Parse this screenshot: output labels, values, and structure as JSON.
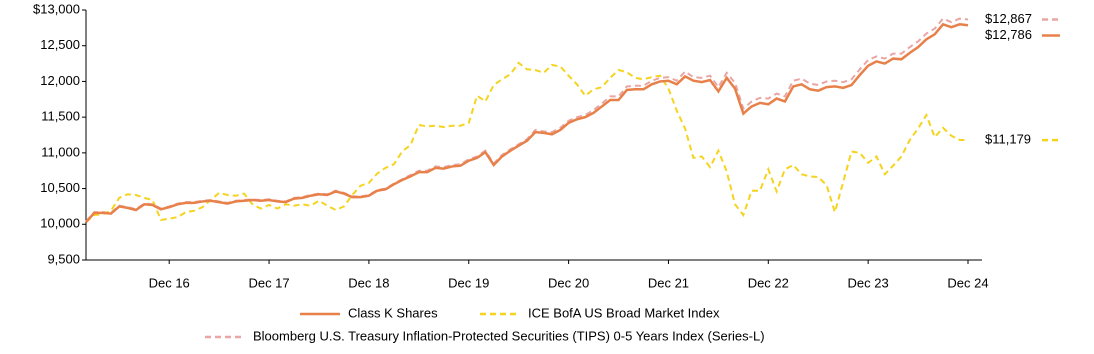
{
  "chart_data": {
    "type": "line",
    "categories": [
      null,
      null,
      null,
      null,
      null,
      null,
      null,
      null,
      null,
      null,
      "Dec 16",
      null,
      null,
      null,
      null,
      null,
      null,
      null,
      null,
      null,
      null,
      null,
      "Dec 17",
      null,
      null,
      null,
      null,
      null,
      null,
      null,
      null,
      null,
      null,
      null,
      "Dec 18",
      null,
      null,
      null,
      null,
      null,
      null,
      null,
      null,
      null,
      null,
      null,
      "Dec 19",
      null,
      null,
      null,
      null,
      null,
      null,
      null,
      null,
      null,
      null,
      null,
      "Dec 20",
      null,
      null,
      null,
      null,
      null,
      null,
      null,
      null,
      null,
      null,
      null,
      "Dec 21",
      null,
      null,
      null,
      null,
      null,
      null,
      null,
      null,
      null,
      null,
      null,
      "Dec 22",
      null,
      null,
      null,
      null,
      null,
      null,
      null,
      null,
      null,
      null,
      null,
      "Dec 23",
      null,
      null,
      null,
      null,
      null,
      null,
      null,
      null,
      null,
      null,
      null,
      "Dec 24"
    ],
    "ylim": [
      9500,
      13000
    ],
    "yticks": [
      {
        "value": 9500,
        "label": "9,500"
      },
      {
        "value": 10000,
        "label": "10,000"
      },
      {
        "value": 10500,
        "label": "10,500"
      },
      {
        "value": 11000,
        "label": "11,000"
      },
      {
        "value": 11500,
        "label": "11,500"
      },
      {
        "value": 12000,
        "label": "12,000"
      },
      {
        "value": 12500,
        "label": "12,500"
      },
      {
        "value": 13000,
        "label": "$13,000"
      }
    ],
    "grid": false,
    "series": [
      {
        "name": "Class K Shares",
        "color": "#e8804a",
        "dash": false,
        "end_label": "$12,786",
        "values": [
          10030,
          10160,
          10160,
          10150,
          10250,
          10230,
          10200,
          10280,
          10270,
          10210,
          10240,
          10280,
          10300,
          10300,
          10320,
          10330,
          10310,
          10290,
          10320,
          10330,
          10340,
          10330,
          10340,
          10320,
          10310,
          10360,
          10370,
          10400,
          10420,
          10410,
          10460,
          10430,
          10380,
          10380,
          10400,
          10470,
          10490,
          10560,
          10620,
          10670,
          10730,
          10730,
          10790,
          10780,
          10810,
          10820,
          10890,
          10930,
          11010,
          10830,
          10950,
          11030,
          11100,
          11170,
          11290,
          11280,
          11260,
          11320,
          11420,
          11470,
          11500,
          11560,
          11650,
          11740,
          11740,
          11880,
          11890,
          11890,
          11960,
          12000,
          12010,
          11960,
          12070,
          12010,
          11990,
          12020,
          11860,
          12050,
          11900,
          11550,
          11650,
          11700,
          11680,
          11760,
          11720,
          11930,
          11960,
          11890,
          11870,
          11920,
          11930,
          11910,
          11950,
          12090,
          12220,
          12280,
          12250,
          12320,
          12310,
          12400,
          12480,
          12590,
          12660,
          12800,
          12760,
          12800,
          12786
        ]
      },
      {
        "name": "ICE BofA US Broad Market Index",
        "color": "#f5d31f",
        "dash": true,
        "end_label": "$11,179",
        "values": [
          10030,
          10130,
          10140,
          10190,
          10370,
          10420,
          10410,
          10370,
          10340,
          10060,
          10080,
          10100,
          10170,
          10190,
          10240,
          10340,
          10440,
          10410,
          10400,
          10430,
          10280,
          10220,
          10270,
          10220,
          10280,
          10260,
          10280,
          10260,
          10330,
          10260,
          10200,
          10250,
          10410,
          10540,
          10580,
          10710,
          10790,
          10840,
          11020,
          11110,
          11390,
          11370,
          11380,
          11360,
          11380,
          11380,
          11420,
          11800,
          11720,
          11950,
          12030,
          12100,
          12260,
          12170,
          12160,
          12120,
          12230,
          12210,
          12080,
          11960,
          11800,
          11890,
          11920,
          12050,
          12160,
          12130,
          12050,
          12030,
          12060,
          12080,
          11900,
          11590,
          11340,
          10930,
          10950,
          10800,
          11030,
          10740,
          10280,
          10130,
          10470,
          10470,
          10770,
          10460,
          10770,
          10830,
          10700,
          10670,
          10660,
          10550,
          10170,
          10590,
          11020,
          11000,
          10860,
          10950,
          10700,
          10820,
          10950,
          11180,
          11340,
          11530,
          11220,
          11350,
          11240,
          11180,
          11179
        ]
      },
      {
        "name": "Bloomberg U.S. Treasury Inflation-Protected Securities (TIPS) 0-5 Years Index (Series-L)",
        "color": "#eaa5a5",
        "dash": true,
        "end_label": "$12,867",
        "values": [
          10040,
          10170,
          10170,
          10160,
          10260,
          10240,
          10210,
          10290,
          10280,
          10220,
          10250,
          10290,
          10310,
          10310,
          10330,
          10340,
          10320,
          10300,
          10330,
          10340,
          10350,
          10340,
          10350,
          10330,
          10320,
          10370,
          10380,
          10410,
          10430,
          10420,
          10470,
          10440,
          10390,
          10390,
          10410,
          10480,
          10500,
          10570,
          10630,
          10690,
          10750,
          10750,
          10810,
          10800,
          10830,
          10840,
          10910,
          10950,
          11030,
          10850,
          10970,
          11050,
          11120,
          11190,
          11320,
          11300,
          11290,
          11350,
          11450,
          11500,
          11530,
          11600,
          11690,
          11790,
          11790,
          11930,
          11940,
          11940,
          12010,
          12050,
          12060,
          12010,
          12140,
          12060,
          12050,
          12080,
          11920,
          12120,
          11980,
          11620,
          11720,
          11770,
          11760,
          11830,
          11790,
          12010,
          12040,
          11970,
          11950,
          12000,
          12010,
          11990,
          12030,
          12170,
          12300,
          12350,
          12320,
          12390,
          12390,
          12480,
          12560,
          12670,
          12740,
          12880,
          12830,
          12880,
          12867
        ]
      }
    ]
  }
}
